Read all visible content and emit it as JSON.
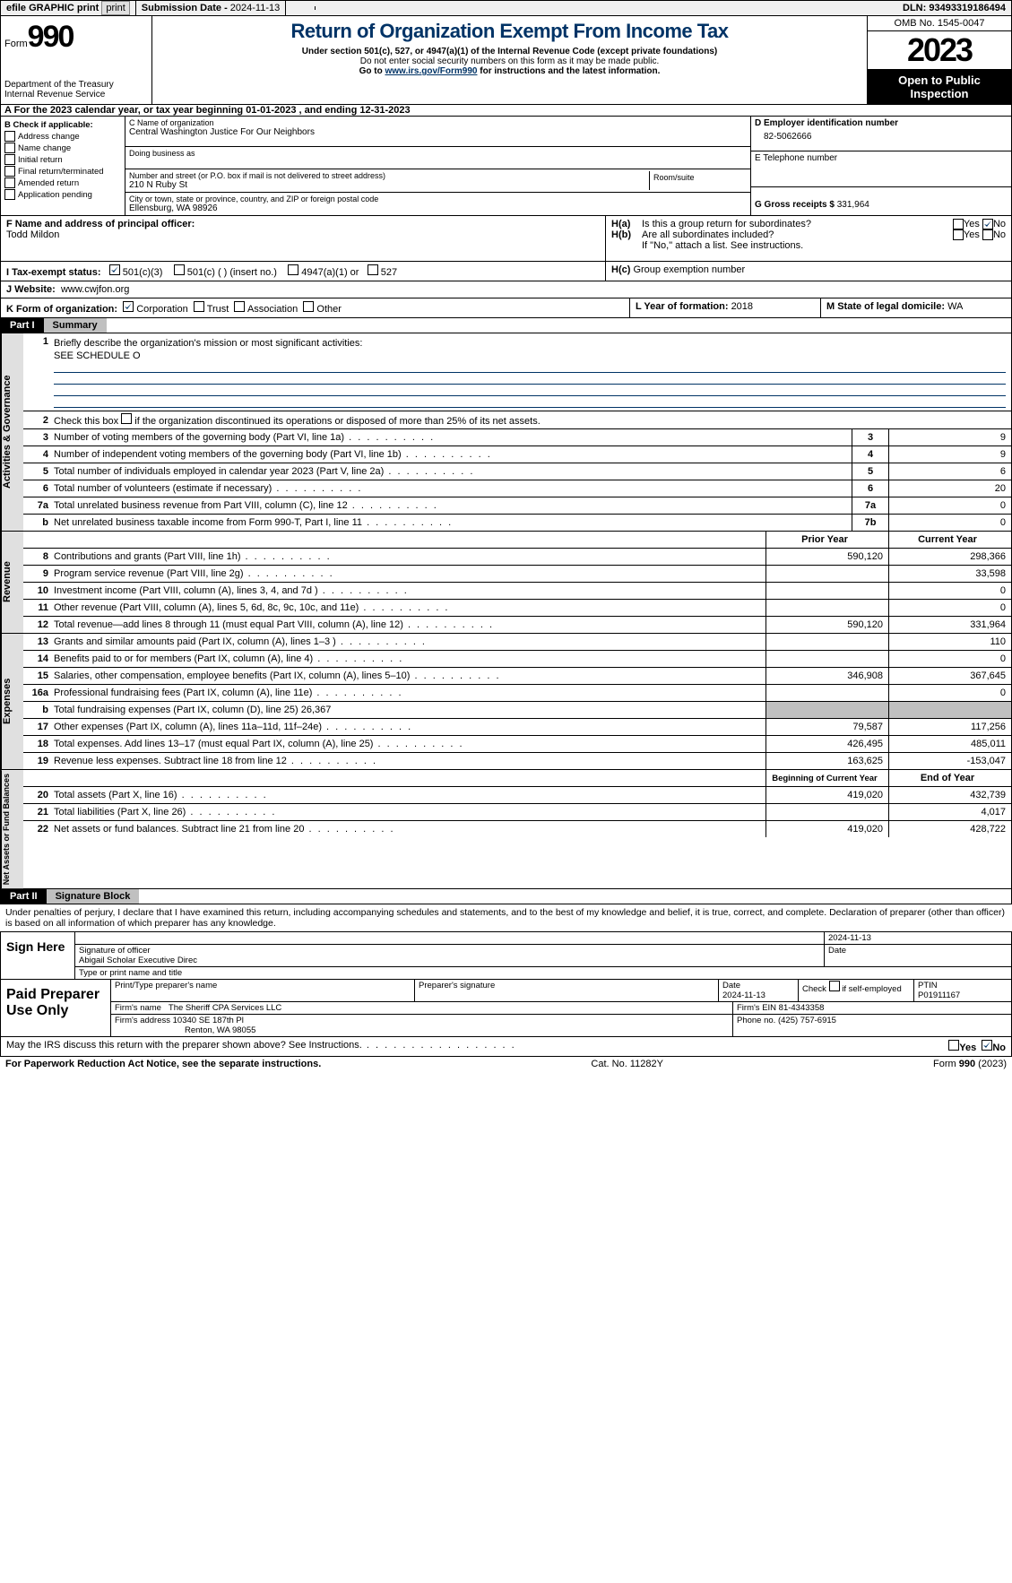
{
  "topbar": {
    "efile": "efile GRAPHIC print",
    "sub_lbl": "Submission Date - ",
    "sub_date": "2024-11-13",
    "dln_lbl": "DLN: ",
    "dln": "93493319186494"
  },
  "header": {
    "form_word": "Form",
    "form_num": "990",
    "dept": "Department of the Treasury\nInternal Revenue Service",
    "title": "Return of Organization Exempt From Income Tax",
    "sub1": "Under section 501(c), 527, or 4947(a)(1) of the Internal Revenue Code (except private foundations)",
    "sub2": "Do not enter social security numbers on this form as it may be made public.",
    "sub3_a": "Go to ",
    "sub3_link": "www.irs.gov/Form990",
    "sub3_b": " for instructions and the latest information.",
    "omb": "OMB No. 1545-0047",
    "year": "2023",
    "inspect": "Open to Public Inspection"
  },
  "row_a": "A For the 2023 calendar year, or tax year beginning 01-01-2023   , and ending 12-31-2023",
  "box_b": {
    "hdr": "B Check if applicable:",
    "items": [
      "Address change",
      "Name change",
      "Initial return",
      "Final return/terminated",
      "Amended return",
      "Application pending"
    ]
  },
  "box_c": {
    "c_lbl": "C Name of organization",
    "c_val": "Central Washington Justice For Our Neighbors",
    "dba_lbl": "Doing business as",
    "addr_lbl": "Number and street (or P.O. box if mail is not delivered to street address)",
    "addr_val": "210 N Ruby St",
    "room_lbl": "Room/suite",
    "city_lbl": "City or town, state or province, country, and ZIP or foreign postal code",
    "city_val": "Ellensburg, WA  98926"
  },
  "box_d": {
    "d_lbl": "D Employer identification number",
    "d_val": "82-5062666",
    "e_lbl": "E Telephone number",
    "g_lbl": "G Gross receipts $ ",
    "g_val": "331,964"
  },
  "box_f": {
    "lbl": "F  Name and address of principal officer:",
    "val": "Todd Mildon"
  },
  "box_h": {
    "a_lbl": "H(a)",
    "a_txt": "Is this a group return for subordinates?",
    "b_lbl": "H(b)",
    "b_txt": "Are all subordinates included?",
    "b_note": "If \"No,\" attach a list. See instructions.",
    "c_lbl": "H(c)",
    "c_txt": "Group exemption number",
    "yes": "Yes",
    "no": "No"
  },
  "row_i": {
    "lbl": "I  Tax-exempt status:",
    "o1": "501(c)(3)",
    "o2": "501(c) (  ) (insert no.)",
    "o3": "4947(a)(1) or",
    "o4": "527"
  },
  "row_j": {
    "lbl": "J  Website:",
    "val": "www.cwjfon.org"
  },
  "row_k": {
    "lbl": "K Form of organization:",
    "o1": "Corporation",
    "o2": "Trust",
    "o3": "Association",
    "o4": "Other",
    "l_lbl": "L Year of formation: ",
    "l_val": "2018",
    "m_lbl": "M State of legal domicile: ",
    "m_val": "WA"
  },
  "part1": {
    "hdr": "Part I",
    "title": "Summary"
  },
  "gov": {
    "tab": "Activities & Governance",
    "l1": "Briefly describe the organization's mission or most significant activities:",
    "l1v": "SEE SCHEDULE O",
    "l2": "Check this box      if the organization discontinued its operations or disposed of more than 25% of its net assets.",
    "rows": [
      {
        "n": "3",
        "d": "Number of voting members of the governing body (Part VI, line 1a)",
        "b": "3",
        "v": "9"
      },
      {
        "n": "4",
        "d": "Number of independent voting members of the governing body (Part VI, line 1b)",
        "b": "4",
        "v": "9"
      },
      {
        "n": "5",
        "d": "Total number of individuals employed in calendar year 2023 (Part V, line 2a)",
        "b": "5",
        "v": "6"
      },
      {
        "n": "6",
        "d": "Total number of volunteers (estimate if necessary)",
        "b": "6",
        "v": "20"
      },
      {
        "n": "7a",
        "d": "Total unrelated business revenue from Part VIII, column (C), line 12",
        "b": "7a",
        "v": "0"
      },
      {
        "n": "b",
        "d": "Net unrelated business taxable income from Form 990-T, Part I, line 11",
        "b": "7b",
        "v": "0"
      }
    ]
  },
  "rev": {
    "tab": "Revenue",
    "hdr_p": "Prior Year",
    "hdr_c": "Current Year",
    "rows": [
      {
        "n": "8",
        "d": "Contributions and grants (Part VIII, line 1h)",
        "p": "590,120",
        "c": "298,366"
      },
      {
        "n": "9",
        "d": "Program service revenue (Part VIII, line 2g)",
        "p": "",
        "c": "33,598"
      },
      {
        "n": "10",
        "d": "Investment income (Part VIII, column (A), lines 3, 4, and 7d )",
        "p": "",
        "c": "0"
      },
      {
        "n": "11",
        "d": "Other revenue (Part VIII, column (A), lines 5, 6d, 8c, 9c, 10c, and 11e)",
        "p": "",
        "c": "0"
      },
      {
        "n": "12",
        "d": "Total revenue—add lines 8 through 11 (must equal Part VIII, column (A), line 12)",
        "p": "590,120",
        "c": "331,964"
      }
    ]
  },
  "exp": {
    "tab": "Expenses",
    "rows": [
      {
        "n": "13",
        "d": "Grants and similar amounts paid (Part IX, column (A), lines 1–3 )",
        "p": "",
        "c": "110"
      },
      {
        "n": "14",
        "d": "Benefits paid to or for members (Part IX, column (A), line 4)",
        "p": "",
        "c": "0"
      },
      {
        "n": "15",
        "d": "Salaries, other compensation, employee benefits (Part IX, column (A), lines 5–10)",
        "p": "346,908",
        "c": "367,645"
      },
      {
        "n": "16a",
        "d": "Professional fundraising fees (Part IX, column (A), line 11e)",
        "p": "",
        "c": "0"
      },
      {
        "n": "b",
        "d": "Total fundraising expenses (Part IX, column (D), line 25) 26,367",
        "p": "grey",
        "c": "grey"
      },
      {
        "n": "17",
        "d": "Other expenses (Part IX, column (A), lines 11a–11d, 11f–24e)",
        "p": "79,587",
        "c": "117,256"
      },
      {
        "n": "18",
        "d": "Total expenses. Add lines 13–17 (must equal Part IX, column (A), line 25)",
        "p": "426,495",
        "c": "485,011"
      },
      {
        "n": "19",
        "d": "Revenue less expenses. Subtract line 18 from line 12",
        "p": "163,625",
        "c": "-153,047"
      }
    ]
  },
  "net": {
    "tab": "Net Assets or Fund Balances",
    "hdr_p": "Beginning of Current Year",
    "hdr_c": "End of Year",
    "rows": [
      {
        "n": "20",
        "d": "Total assets (Part X, line 16)",
        "p": "419,020",
        "c": "432,739"
      },
      {
        "n": "21",
        "d": "Total liabilities (Part X, line 26)",
        "p": "",
        "c": "4,017"
      },
      {
        "n": "22",
        "d": "Net assets or fund balances. Subtract line 21 from line 20",
        "p": "419,020",
        "c": "428,722"
      }
    ]
  },
  "part2": {
    "hdr": "Part II",
    "title": "Signature Block"
  },
  "sig_decl": "Under penalties of perjury, I declare that I have examined this return, including accompanying schedules and statements, and to the best of my knowledge and belief, it is true, correct, and complete. Declaration of preparer (other than officer) is based on all information of which preparer has any knowledge.",
  "sign": {
    "lbl": "Sign Here",
    "date": "2024-11-13",
    "sig_lbl": "Signature of officer",
    "name": "Abigail Scholar Executive Direc",
    "type_lbl": "Type or print name and title",
    "date_lbl": "Date"
  },
  "prep": {
    "lbl": "Paid Preparer Use Only",
    "c1": "Print/Type preparer's name",
    "c2": "Preparer's signature",
    "c3_l": "Date",
    "c3_v": "2024-11-13",
    "c4": "Check       if self-employed",
    "c5_l": "PTIN",
    "c5_v": "P01911167",
    "f_lbl": "Firm's name",
    "f_val": "The Sheriff CPA Services LLC",
    "ein_lbl": "Firm's EIN ",
    "ein_val": "81-4343358",
    "a_lbl": "Firm's address ",
    "a_val1": "10340 SE 187th Pl",
    "a_val2": "Renton, WA  98055",
    "ph_lbl": "Phone no. ",
    "ph_val": "(425) 757-6915"
  },
  "may": "May the IRS discuss this return with the preparer shown above? See Instructions.",
  "footer": {
    "l": "For Paperwork Reduction Act Notice, see the separate instructions.",
    "m": "Cat. No. 11282Y",
    "r": "Form 990 (2023)"
  }
}
